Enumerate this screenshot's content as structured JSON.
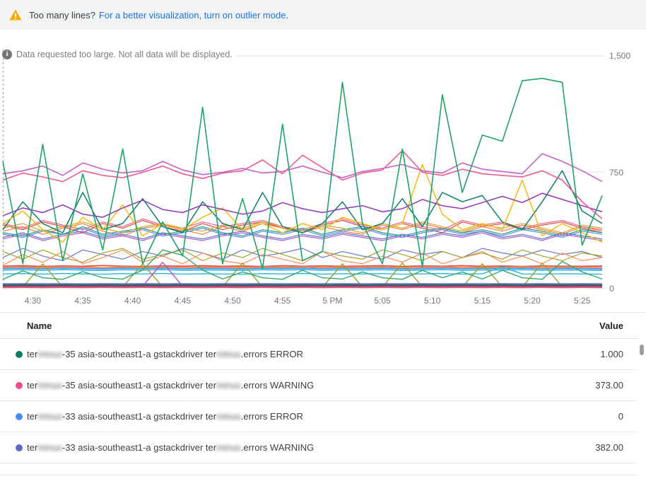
{
  "banner": {
    "warning_text": "Too many lines?",
    "link_text": "For a better visualization, turn on outlier mode.",
    "warning_color": "#f9ab00",
    "link_color": "#1a73e8"
  },
  "icons": {
    "warning_icon": "warning-triangle",
    "info_icon": "info-circle"
  },
  "notice": {
    "text": "Data requested too large. Not all data will be displayed."
  },
  "chart_data": {
    "type": "line",
    "title": "",
    "xlabel": "",
    "ylabel": "",
    "grid": true,
    "legend_position": "table-below",
    "ylim": [
      0,
      1500
    ],
    "y_ticks": [
      {
        "label": "0",
        "value": 0
      },
      {
        "label": "750",
        "value": 750
      },
      {
        "label": "1,500",
        "value": 1500
      }
    ],
    "x_window_minutes": 60,
    "x_ticks": [
      {
        "label": "4:30",
        "t": 3
      },
      {
        "label": "4:35",
        "t": 8
      },
      {
        "label": "4:40",
        "t": 13
      },
      {
        "label": "4:45",
        "t": 18
      },
      {
        "label": "4:50",
        "t": 23
      },
      {
        "label": "4:55",
        "t": 28
      },
      {
        "label": "5 PM",
        "t": 33
      },
      {
        "label": "5:05",
        "t": 38
      },
      {
        "label": "5:10",
        "t": 43
      },
      {
        "label": "5:15",
        "t": 48
      },
      {
        "label": "5:20",
        "t": 53
      },
      {
        "label": "5:25",
        "t": 58
      }
    ],
    "series": [
      {
        "color": "#e1493e",
        "width": 1.2,
        "values": [
          410,
          380,
          430,
          400,
          360,
          420,
          390,
          440,
          400,
          370,
          420,
          380,
          410,
          430,
          390,
          360,
          410,
          440,
          400,
          380,
          420,
          390,
          360,
          430,
          400,
          420,
          380,
          410,
          430,
          390,
          360
        ]
      },
      {
        "color": "#fb7b48",
        "width": 1.2,
        "values": [
          370,
          400,
          350,
          390,
          420,
          370,
          340,
          390,
          410,
          380,
          350,
          400,
          370,
          420,
          390,
          360,
          400,
          370,
          350,
          410,
          380,
          420,
          390,
          360,
          400,
          370,
          410,
          380,
          350,
          400,
          370
        ]
      },
      {
        "color": "#4e8df2",
        "width": 1.2,
        "values": [
          350,
          330,
          370,
          350,
          390,
          340,
          360,
          380,
          340,
          360,
          390,
          350,
          330,
          370,
          350,
          380,
          340,
          370,
          390,
          350,
          330,
          360,
          380,
          350,
          370,
          340,
          380,
          360,
          330,
          370,
          350
        ]
      },
      {
        "color": "#5e6cc4",
        "width": 1.2,
        "values": [
          330,
          360,
          320,
          350,
          370,
          330,
          350,
          320,
          360,
          340,
          320,
          350,
          370,
          340,
          320,
          350,
          330,
          360,
          340,
          320,
          350,
          330,
          360,
          340,
          370,
          330,
          350,
          320,
          360,
          340,
          320
        ]
      },
      {
        "color": "#ef6596",
        "width": 1.2,
        "values": [
          420,
          390,
          440,
          410,
          380,
          430,
          400,
          450,
          410,
          390,
          430,
          400,
          420,
          440,
          400,
          380,
          420,
          450,
          410,
          390,
          430,
          400,
          380,
          440,
          410,
          430,
          390,
          420,
          440,
          400,
          380
        ]
      },
      {
        "color": "#22998a",
        "width": 1.2,
        "values": [
          360,
          340,
          380,
          350,
          400,
          350,
          370,
          390,
          350,
          370,
          400,
          360,
          340,
          380,
          360,
          390,
          350,
          380,
          400,
          360,
          340,
          370,
          390,
          360,
          380,
          350,
          390,
          370,
          340,
          380,
          360
        ]
      },
      {
        "color": "#d4a72c",
        "width": 1.2,
        "values": [
          390,
          420,
          370,
          400,
          430,
          390,
          360,
          400,
          420,
          390,
          370,
          410,
          390,
          430,
          400,
          370,
          410,
          390,
          360,
          420,
          390,
          430,
          400,
          370,
          410,
          390,
          420,
          390,
          360,
          410,
          390
        ]
      },
      {
        "color": "#ad5fd0",
        "width": 1.2,
        "values": [
          320,
          350,
          310,
          340,
          360,
          320,
          340,
          310,
          350,
          330,
          310,
          340,
          360,
          330,
          310,
          340,
          320,
          350,
          330,
          310,
          340,
          320,
          350,
          330,
          360,
          320,
          340,
          310,
          350,
          330,
          310
        ]
      },
      {
        "color": "#6678cc",
        "width": 1.2,
        "values": [
          200,
          260,
          210,
          180,
          250,
          220,
          190,
          240,
          210,
          260,
          230,
          190,
          250,
          210,
          230,
          260,
          200,
          240,
          210,
          190,
          250,
          220,
          240,
          200,
          260,
          230,
          210,
          250,
          220,
          240,
          200
        ]
      },
      {
        "color": "#fd8a55",
        "width": 1.2,
        "values": [
          150,
          220,
          170,
          240,
          160,
          200,
          250,
          170,
          210,
          160,
          230,
          180,
          160,
          220,
          190,
          160,
          240,
          180,
          160,
          210,
          170,
          230,
          160,
          200,
          240,
          170,
          210,
          160,
          230,
          180,
          200
        ]
      },
      {
        "color": "#a8a226",
        "width": 1.2,
        "values": [
          240,
          190,
          250,
          200,
          170,
          230,
          260,
          190,
          220,
          250,
          180,
          230,
          200,
          260,
          220,
          180,
          240,
          210,
          190,
          250,
          220,
          180,
          240,
          200,
          230,
          190,
          250,
          210,
          180,
          230,
          210
        ]
      },
      {
        "color": "#e25043",
        "width": 1.7,
        "values": [
          145,
          148,
          143,
          147,
          144,
          149,
          145,
          143,
          147,
          145,
          148,
          144,
          146,
          143,
          148,
          145,
          147,
          144,
          146,
          148,
          143,
          147,
          145,
          148,
          144,
          146,
          143,
          147,
          145,
          144,
          146
        ]
      },
      {
        "color": "#4d8df2",
        "width": 1.7,
        "values": [
          130,
          132,
          129,
          133,
          130,
          128,
          132,
          130,
          133,
          129,
          131,
          130,
          128,
          132,
          130,
          133,
          129,
          131,
          130,
          132,
          128,
          130,
          133,
          129,
          131,
          130,
          132,
          129,
          131,
          130,
          128
        ]
      },
      {
        "color": "#2cb8d8",
        "width": 1.7,
        "values": [
          120,
          122,
          119,
          123,
          120,
          118,
          122,
          120,
          123,
          119,
          121,
          120,
          118,
          122,
          120,
          123,
          119,
          121,
          120,
          122,
          118,
          120,
          123,
          119,
          121,
          120,
          122,
          119,
          121,
          120,
          118
        ]
      },
      {
        "color": "#fb8a4b",
        "width": 1.7,
        "values": [
          138,
          140,
          137,
          141,
          138,
          136,
          140,
          138,
          141,
          137,
          139,
          138,
          136,
          140,
          138,
          141,
          137,
          139,
          138,
          140,
          136,
          138,
          141,
          137,
          139,
          138,
          140,
          137,
          139,
          138,
          136
        ]
      },
      {
        "color": "#2cb8d8",
        "width": 1.4,
        "values": [
          95,
          97,
          94,
          98,
          95,
          93,
          97,
          95,
          98,
          94,
          96,
          95,
          93,
          97,
          95,
          98,
          94,
          96,
          95,
          97,
          93,
          95,
          98,
          94,
          96,
          140,
          95,
          94,
          96,
          95,
          93
        ]
      },
      {
        "color": "#9e9d24",
        "width": 1.4,
        "values": [
          10,
          12,
          160,
          10,
          12,
          10,
          11,
          160,
          12,
          10,
          11,
          12,
          165,
          10,
          12,
          11,
          10,
          160,
          12,
          10,
          165,
          11,
          12,
          10,
          160,
          12,
          10,
          165,
          12,
          10,
          11
        ]
      },
      {
        "color": "#c04ac4",
        "width": 1.4,
        "values": [
          18,
          16,
          18,
          17,
          16,
          18,
          17,
          16,
          170,
          16,
          18,
          17,
          16,
          18,
          17,
          16,
          18,
          16,
          17,
          18,
          16,
          17,
          18,
          16,
          17,
          18,
          16,
          17,
          18,
          16,
          17
        ]
      },
      {
        "color": "#34a86f",
        "width": 1.4,
        "values": [
          60,
          115,
          70,
          60,
          110,
          70,
          62,
          120,
          250,
          215,
          120,
          62,
          108,
          70,
          60,
          118,
          70,
          62,
          108,
          70,
          60,
          118,
          70,
          108,
          62,
          118,
          70,
          60,
          175,
          108,
          62
        ]
      },
      {
        "color": "#00695c",
        "width": 2.0,
        "values": [
          22,
          23,
          22,
          23,
          22,
          23,
          22,
          23,
          22,
          23,
          22,
          23,
          22,
          23,
          22,
          23,
          22,
          23,
          22,
          23,
          22,
          23,
          22,
          23,
          22,
          23,
          22,
          23,
          22,
          23,
          22
        ]
      },
      {
        "color": "#b3413a",
        "width": 2.0,
        "values": [
          15,
          16,
          15,
          16,
          15,
          16,
          15,
          16,
          15,
          16,
          15,
          16,
          15,
          16,
          15,
          16,
          15,
          16,
          15,
          16,
          15,
          16,
          15,
          16,
          15,
          16,
          15,
          16,
          15,
          16,
          15
        ]
      },
      {
        "color": "#5c6bc0",
        "width": 2.0,
        "values": [
          30,
          31,
          30,
          31,
          30,
          31,
          30,
          31,
          30,
          31,
          30,
          31,
          30,
          31,
          30,
          31,
          30,
          31,
          30,
          31,
          30,
          31,
          30,
          31,
          30,
          31,
          30,
          31,
          30,
          31,
          30
        ]
      },
      {
        "color": "#d4558c",
        "width": 2.0,
        "values": [
          8,
          9,
          8,
          9,
          8,
          9,
          8,
          9,
          8,
          9,
          8,
          9,
          8,
          9,
          8,
          9,
          8,
          9,
          8,
          9,
          8,
          9,
          8,
          9,
          8,
          9,
          8,
          9,
          8,
          9,
          8
        ]
      },
      {
        "color": "#0c7f6d",
        "width": 1.5,
        "values": [
          380,
          560,
          420,
          360,
          620,
          380,
          420,
          580,
          400,
          360,
          560,
          420,
          380,
          620,
          400,
          360,
          420,
          560,
          380,
          420,
          580,
          400,
          620,
          560,
          600,
          430,
          380,
          560,
          760,
          500,
          420
        ]
      },
      {
        "color": "#f5b814",
        "width": 1.5,
        "values": [
          420,
          500,
          380,
          300,
          460,
          380,
          540,
          340,
          420,
          380,
          460,
          520,
          380,
          420,
          360,
          420,
          380,
          460,
          420,
          380,
          420,
          800,
          480,
          380,
          420,
          380,
          700,
          340,
          420,
          360,
          300
        ]
      },
      {
        "color": "#9138b8",
        "width": 1.5,
        "values": [
          470,
          520,
          490,
          540,
          480,
          460,
          520,
          570,
          510,
          490,
          540,
          510,
          480,
          500,
          555,
          515,
          490,
          515,
          535,
          495,
          515,
          575,
          535,
          515,
          555,
          595,
          555,
          615,
          575,
          535,
          495
        ]
      },
      {
        "color": "#ee5a93",
        "width": 1.6,
        "values": [
          700,
          745,
          720,
          690,
          760,
          730,
          715,
          750,
          790,
          740,
          710,
          745,
          760,
          830,
          740,
          860,
          780,
          700,
          745,
          765,
          890,
          750,
          730,
          770,
          740,
          730,
          720,
          760,
          700,
          560,
          450
        ]
      },
      {
        "color": "#c563c9",
        "width": 1.6,
        "values": [
          740,
          760,
          790,
          730,
          810,
          770,
          745,
          760,
          820,
          765,
          735,
          750,
          775,
          745,
          755,
          790,
          750,
          715,
          755,
          775,
          800,
          760,
          745,
          810,
          770,
          755,
          740,
          870,
          820,
          760,
          690
        ]
      },
      {
        "color": "#1fa463",
        "width": 1.6,
        "values": [
          820,
          160,
          930,
          180,
          740,
          250,
          900,
          160,
          430,
          210,
          1170,
          160,
          580,
          130,
          1060,
          180,
          240,
          1330,
          420,
          160,
          900,
          140,
          1250,
          620,
          990,
          950,
          1340,
          1355,
          1330,
          280,
          600
        ]
      }
    ]
  },
  "legend": {
    "header": {
      "name": "Name",
      "value": "Value"
    },
    "rows": [
      {
        "color": "#0d7a66",
        "value": "1.000",
        "segments": [
          {
            "t": "ter"
          },
          {
            "t": "minus",
            "blur": true
          },
          {
            "t": "-35 asia-southeast1-a gstackdriver ter"
          },
          {
            "t": "minus",
            "blur": true
          },
          {
            "t": ".errors ERROR"
          }
        ]
      },
      {
        "color": "#ee4c8d",
        "value": "373.00",
        "segments": [
          {
            "t": "ter"
          },
          {
            "t": "minus",
            "blur": true
          },
          {
            "t": "-35 asia-southeast1-a gstackdriver ter"
          },
          {
            "t": "minus",
            "blur": true
          },
          {
            "t": ".errors WARNING"
          }
        ]
      },
      {
        "color": "#4a8cf7",
        "value": "0",
        "segments": [
          {
            "t": "ter"
          },
          {
            "t": "minus",
            "blur": true
          },
          {
            "t": "-33 asia-southeast1-a gstackdriver ter"
          },
          {
            "t": "minus",
            "blur": true
          },
          {
            "t": ".errors ERROR"
          }
        ]
      },
      {
        "color": "#5c6bc0",
        "value": "382.00",
        "segments": [
          {
            "t": "ter"
          },
          {
            "t": "minus",
            "blur": true
          },
          {
            "t": "-33 asia-southeast1-a gstackdriver ter"
          },
          {
            "t": "minus",
            "blur": true
          },
          {
            "t": ".errors WARNING"
          }
        ]
      }
    ]
  }
}
